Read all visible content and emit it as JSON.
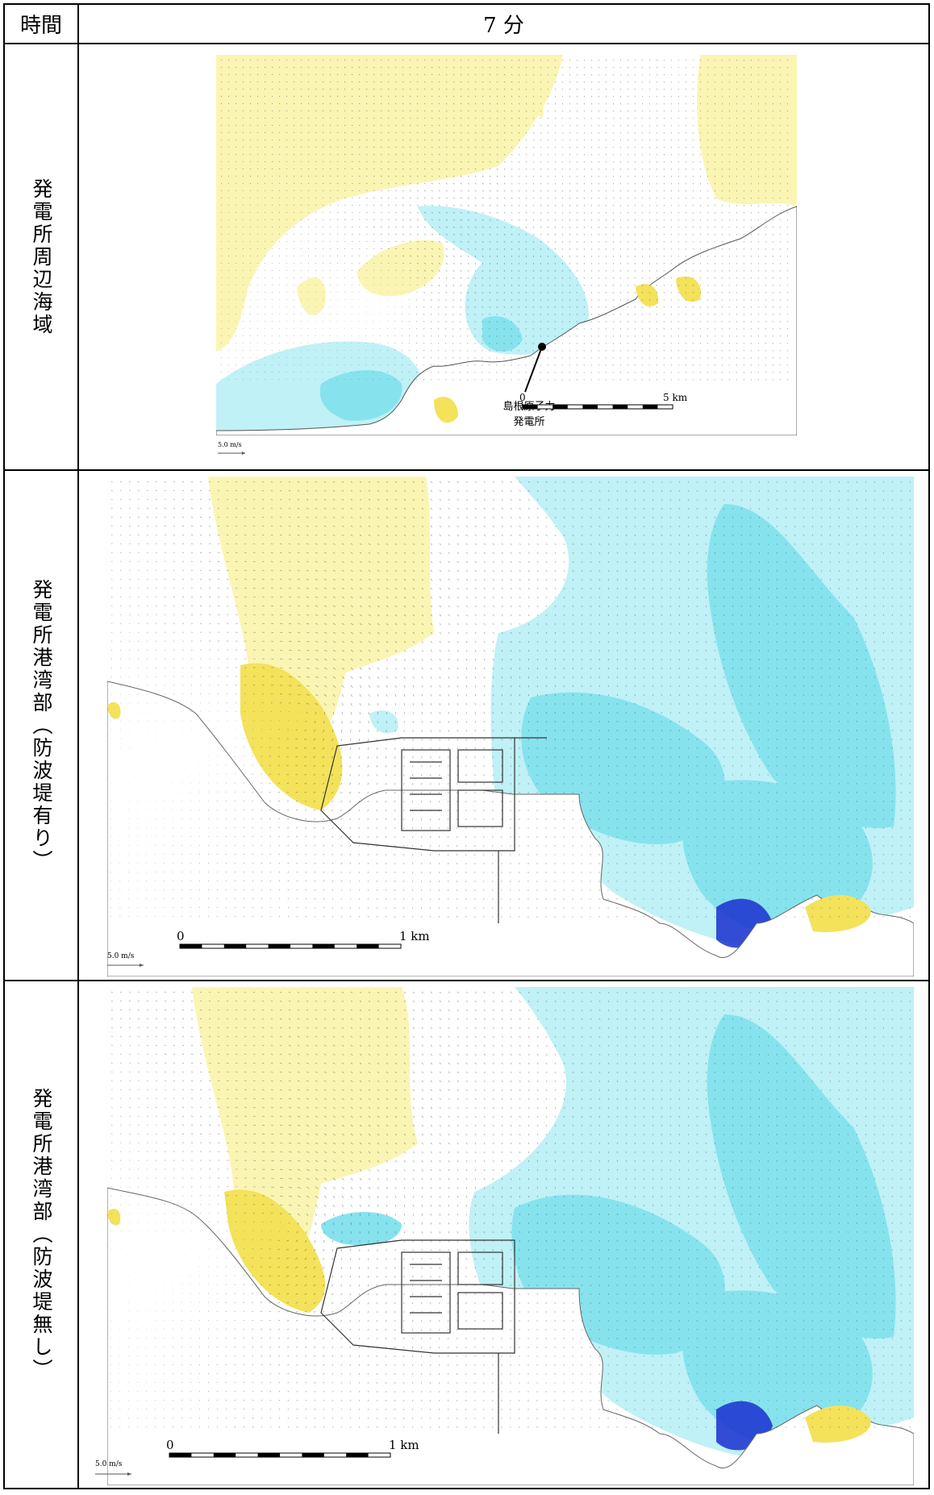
{
  "header": {
    "time_label": "時間",
    "time_value": "7 分"
  },
  "rows": [
    {
      "label": "発電所周辺海域",
      "plant_label_line1": "島根原子力",
      "plant_label_line2": "発電所",
      "scale_start": "0",
      "scale_end": "5 km",
      "velocity_ref": "5.0 m/s"
    },
    {
      "label": "発電所港湾部（防波堤有り）",
      "scale_start": "0",
      "scale_end": "1 km",
      "velocity_ref": "5.0 m/s"
    },
    {
      "label": "発電所港湾部（防波堤無し）",
      "scale_start": "0",
      "scale_end": "1 km",
      "velocity_ref": "5.0 m/s"
    }
  ],
  "colors": {
    "rise": "#fbf5b4",
    "rise_strong": "#f3e25a",
    "fall_light": "#bff1f6",
    "fall": "#86e3ee",
    "fall_mid": "#2fb9e4",
    "fall_deep": "#1a2fd0",
    "land": "#ffffff",
    "vector": "#333333"
  }
}
